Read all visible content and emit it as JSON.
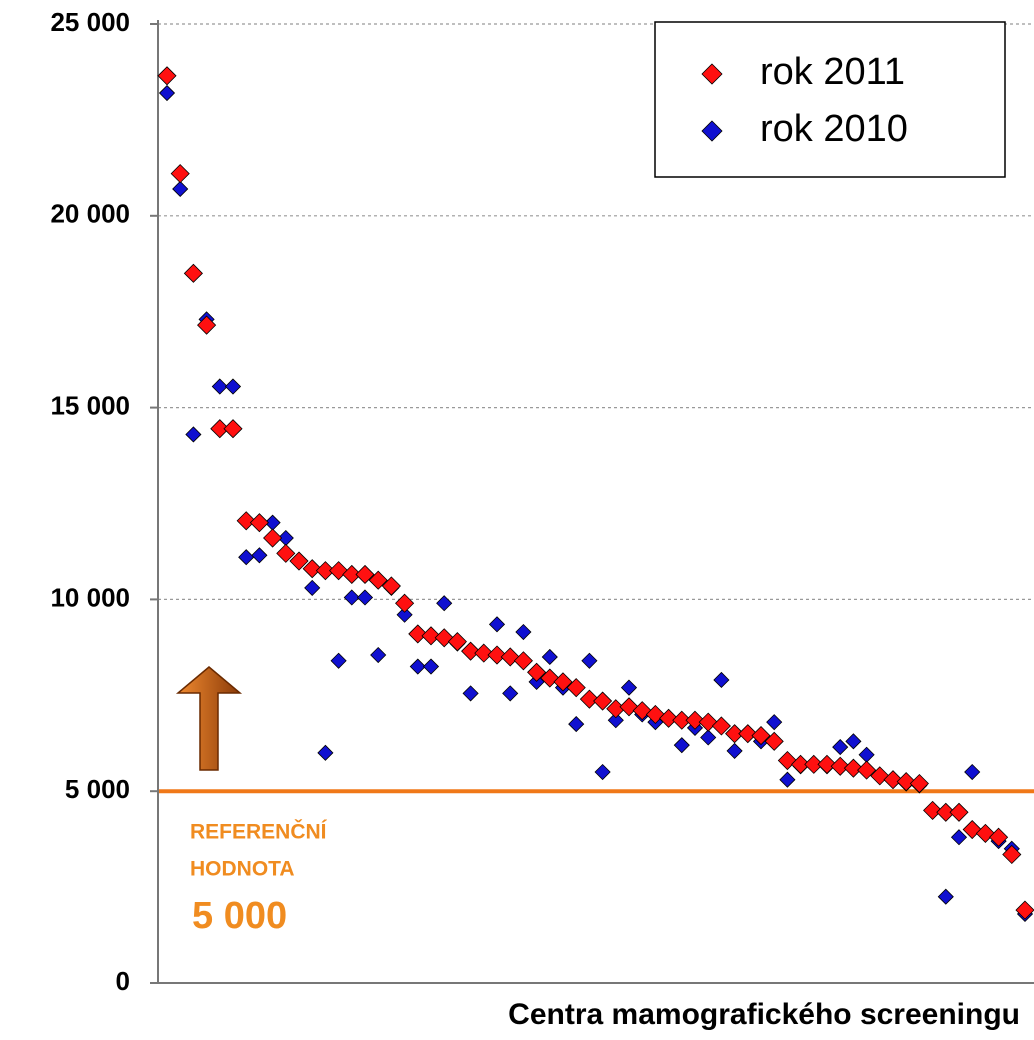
{
  "chart_data": {
    "type": "scatter",
    "xlabel": "Centra mamografického screeningu",
    "ylim": [
      0,
      25000
    ],
    "yticks": [
      0,
      {
        "value": 5000,
        "label": "5 000"
      },
      {
        "value": 10000,
        "label": "10 000"
      },
      {
        "value": 15000,
        "label": "15 000"
      },
      {
        "value": 20000,
        "label": "20 000"
      },
      {
        "value": 25000,
        "label": "25 000"
      }
    ],
    "grid": true,
    "legend": "top-right",
    "reference_line": {
      "value": 5000,
      "color": "#f07818",
      "text": [
        "REFERENČNÍ",
        "HODNOTA"
      ],
      "label": "5 000"
    },
    "series": [
      {
        "name": "rok 2010",
        "color": "#1010d0",
        "values": [
          23200,
          20700,
          14300,
          17300,
          15550,
          15550,
          11100,
          11150,
          12000,
          11600,
          11000,
          10300,
          6000,
          8400,
          10050,
          10050,
          8550,
          10300,
          9600,
          8250,
          8250,
          9900,
          8850,
          7550,
          8600,
          9350,
          7550,
          9150,
          7850,
          8500,
          7700,
          6750,
          8400,
          5500,
          6850,
          7700,
          7000,
          6800,
          6900,
          6200,
          6650,
          6400,
          7900,
          6050,
          6500,
          6300,
          6800,
          5300,
          5650,
          5700,
          5650,
          6150,
          6300,
          5950,
          5400,
          5300,
          5200,
          5150,
          4500,
          2250,
          3800,
          5500,
          3900,
          3700,
          3500,
          1800
        ]
      },
      {
        "name": "rok 2011",
        "color": "#ff1010",
        "values": [
          23650,
          21100,
          18500,
          17150,
          14450,
          14450,
          12050,
          12000,
          11600,
          11200,
          11000,
          10800,
          10750,
          10750,
          10650,
          10650,
          10500,
          10350,
          9900,
          9100,
          9050,
          9000,
          8900,
          8650,
          8600,
          8550,
          8500,
          8400,
          8100,
          7950,
          7850,
          7700,
          7400,
          7350,
          7150,
          7200,
          7100,
          7000,
          6900,
          6850,
          6850,
          6800,
          6700,
          6500,
          6500,
          6450,
          6300,
          5800,
          5700,
          5700,
          5700,
          5650,
          5600,
          5550,
          5400,
          5300,
          5250,
          5200,
          4500,
          4450,
          4450,
          4000,
          3900,
          3800,
          3350,
          1900
        ]
      }
    ]
  }
}
